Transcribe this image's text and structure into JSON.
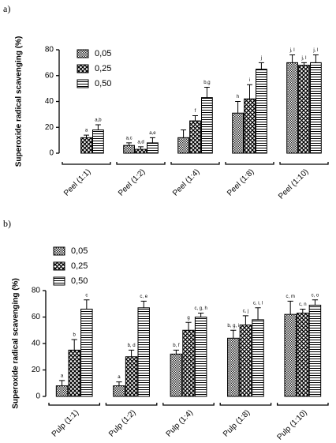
{
  "chart_data": [
    {
      "type": "bar",
      "panel": "a)",
      "ylabel": "Superoxide radical scavenging (%)",
      "categories": [
        "Peel (1:1)",
        "Peel (1:2)",
        "Peel (1:4)",
        "Peel (1:8)",
        "Peel (1:10)"
      ],
      "series": [
        {
          "name": "0,05",
          "color": "#000000",
          "values": [
            null,
            6,
            12,
            31,
            70
          ],
          "errors": [
            null,
            2,
            6,
            9,
            6
          ],
          "letters": [
            null,
            "a,c",
            null,
            "h",
            "j, l"
          ]
        },
        {
          "name": "0,25",
          "color": "#000000",
          "values": [
            12,
            3,
            25,
            42,
            68
          ],
          "errors": [
            2,
            2,
            4,
            11,
            2
          ],
          "letters": [
            "a",
            "a,d",
            "f",
            "i",
            "j, l"
          ]
        },
        {
          "name": "0,50",
          "color": "#000000",
          "values": [
            18,
            8,
            43,
            65,
            70
          ],
          "errors": [
            4,
            4,
            8,
            5,
            6
          ],
          "letters": [
            "a,b",
            "a,e",
            "b,g",
            "j",
            "j, l"
          ]
        }
      ],
      "ylim": [
        0,
        80
      ],
      "yticks": [
        0,
        20,
        40,
        60,
        80
      ],
      "grid": false
    },
    {
      "type": "bar",
      "panel": "b)",
      "ylabel": "Superoxide radical scavenging (%)",
      "categories": [
        "Pulp (1:1)",
        "Pulp (1:2)",
        "Pulp (1:4)",
        "Pulp (1:8)",
        "Pulp (1:10)"
      ],
      "series": [
        {
          "name": "0,05",
          "color": "#000000",
          "values": [
            8,
            8,
            32,
            44,
            62
          ],
          "errors": [
            4,
            3,
            3,
            6,
            10
          ],
          "letters": [
            "a",
            "a",
            "b, f",
            "b, g, i",
            "c, m"
          ]
        },
        {
          "name": "0,25",
          "color": "#000000",
          "values": [
            35,
            30,
            50,
            54,
            63
          ],
          "errors": [
            8,
            5,
            6,
            7,
            3
          ],
          "letters": [
            "b",
            "b, d",
            "g",
            "c, j",
            "c, n"
          ]
        },
        {
          "name": "0,50",
          "color": "#000000",
          "values": [
            66,
            67,
            60,
            58,
            69
          ],
          "errors": [
            7,
            5,
            3,
            9,
            4
          ],
          "letters": [
            "c",
            "c, e",
            "c, g, h",
            "c, i, l",
            "c, o"
          ]
        }
      ],
      "ylim": [
        0,
        80
      ],
      "yticks": [
        0,
        20,
        40,
        60,
        80
      ],
      "grid": false
    }
  ]
}
